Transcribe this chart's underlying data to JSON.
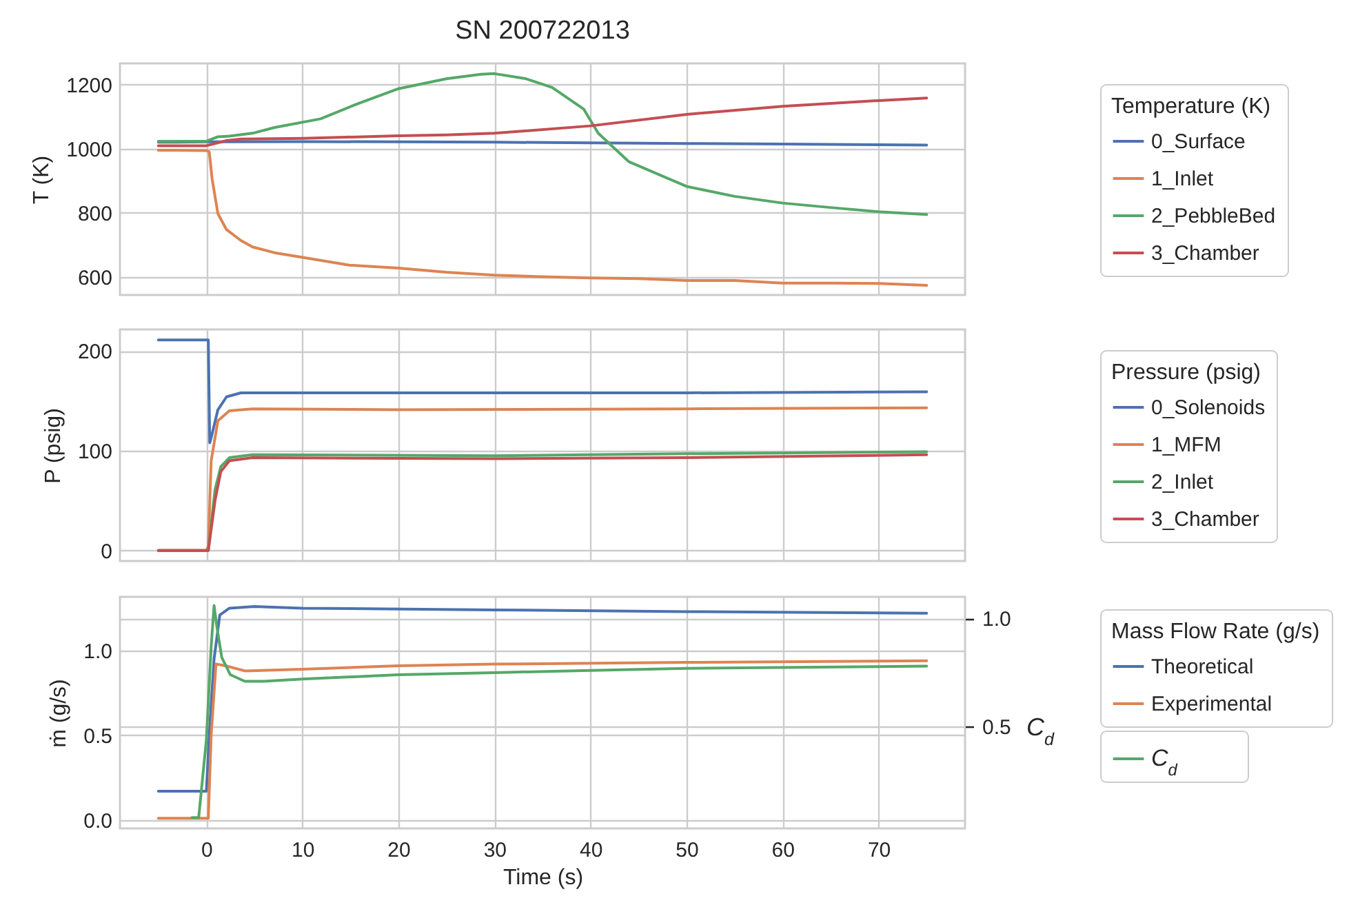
{
  "chart_data": [
    {
      "type": "line",
      "title": "SN 200722013",
      "ylabel": "T (K)",
      "legend_title": "Temperature (K)",
      "legend": "right",
      "grid": true,
      "tick_labels": "y",
      "xlim": [
        -9,
        79
      ],
      "xticks": [
        0,
        10,
        20,
        30,
        40,
        50,
        60,
        70
      ],
      "ylim": [
        543,
        1266
      ],
      "yticks": [
        600,
        800,
        1000,
        1200
      ],
      "series": [
        {
          "name": "0_Surface",
          "color": "#4c72b0",
          "x": [
            -5,
            0,
            10,
            20,
            30,
            40,
            50,
            60,
            70,
            75
          ],
          "values": [
            1020,
            1021,
            1022,
            1021,
            1020,
            1018,
            1016,
            1014,
            1012,
            1011
          ]
        },
        {
          "name": "1_Inlet",
          "color": "#dd8452",
          "x": [
            -5,
            0,
            0.3,
            0.6,
            1.2,
            2.1,
            3.6,
            4.8,
            7.1,
            10.7,
            14.9,
            20,
            25,
            30,
            35,
            40,
            45,
            50,
            55,
            60,
            65,
            70,
            75
          ],
          "values": [
            995,
            994,
            990,
            905,
            797,
            747,
            713,
            693,
            675,
            657,
            636,
            627,
            614,
            605,
            600,
            596,
            594,
            588,
            588,
            580,
            580,
            579,
            573
          ]
        },
        {
          "name": "2_PebbleBed",
          "color": "#55a868",
          "x": [
            -5,
            0,
            1.2,
            2.4,
            4.8,
            7.1,
            11.9,
            15.5,
            20,
            25,
            28.6,
            30,
            33.3,
            36,
            39.3,
            40.8,
            44,
            50,
            55,
            60,
            65,
            70,
            75
          ],
          "values": [
            1023,
            1023,
            1037,
            1039,
            1048,
            1066,
            1093,
            1137,
            1187,
            1218,
            1232,
            1234,
            1218,
            1191,
            1123,
            1048,
            959,
            882,
            851,
            830,
            816,
            803,
            794
          ]
        },
        {
          "name": "3_Chamber",
          "color": "#c44e52",
          "x": [
            -5,
            0,
            2.1,
            3.6,
            10,
            20,
            25,
            30,
            40,
            50,
            60,
            70,
            75
          ],
          "values": [
            1009,
            1009,
            1025,
            1030,
            1032,
            1040,
            1043,
            1048,
            1071,
            1107,
            1132,
            1150,
            1158
          ]
        }
      ]
    },
    {
      "type": "line",
      "ylabel": "P (psig)",
      "legend_title": "Pressure (psig)",
      "legend": "right",
      "grid": true,
      "tick_labels": "y",
      "xlim": [
        -9,
        79
      ],
      "xticks": [
        0,
        10,
        20,
        30,
        40,
        50,
        60,
        70
      ],
      "ylim": [
        -10.5,
        221.5
      ],
      "yticks": [
        0,
        100,
        200
      ],
      "series": [
        {
          "name": "0_Solenoids",
          "color": "#4c72b0",
          "x": [
            -5,
            0,
            0.2,
            0.35,
            0.5,
            1.2,
            2.1,
            3.6,
            10,
            30,
            50,
            75
          ],
          "values": [
            211,
            211,
            211,
            108,
            113,
            141,
            154,
            158,
            158,
            158,
            158,
            159
          ]
        },
        {
          "name": "1_MFM",
          "color": "#dd8452",
          "x": [
            -5,
            0,
            0.2,
            0.5,
            1.2,
            2.4,
            4.8,
            20,
            50,
            75
          ],
          "values": [
            0,
            0,
            4,
            90,
            130,
            140,
            142,
            141,
            142,
            143
          ]
        },
        {
          "name": "2_Inlet",
          "color": "#55a868",
          "x": [
            -5,
            0,
            0.2,
            0.9,
            1.5,
            2.4,
            4.8,
            30,
            50,
            75
          ],
          "values": [
            0,
            0,
            0,
            61,
            84,
            93,
            96,
            95,
            97,
            99
          ]
        },
        {
          "name": "3_Chamber",
          "color": "#c44e52",
          "x": [
            -5,
            0,
            0.2,
            0.9,
            1.5,
            2.4,
            4.8,
            30,
            50,
            75
          ],
          "values": [
            0,
            0,
            0,
            50,
            79,
            90,
            93,
            92,
            93,
            96
          ]
        }
      ]
    },
    {
      "type": "line",
      "xlabel": "Time (s)",
      "ylabel": "ṁ (g/s)",
      "y2label": "C$_{d}$",
      "legend_title": "Mass Flow Rate (g/s)",
      "legend": "right",
      "grid": true,
      "xlim": [
        -9,
        79
      ],
      "xticks": [
        0,
        10,
        20,
        30,
        40,
        50,
        60,
        70
      ],
      "ylim": [
        -0.05,
        1.317
      ],
      "yticks": [
        {
          "value": 0,
          "label": "0.0"
        },
        {
          "value": 0.5,
          "label": "0.5"
        },
        {
          "value": 1,
          "label": "1.0"
        }
      ],
      "y2lim": [
        0.03,
        1.1
      ],
      "y2ticks": [
        {
          "value": 0.5,
          "label": "0.5"
        },
        {
          "value": 1,
          "label": "1.0"
        }
      ],
      "series": [
        {
          "name": "Theoretical",
          "color": "#4c72b0",
          "x": [
            -5,
            0,
            0.3,
            0.8,
            1.4,
            2.4,
            5,
            10,
            30,
            50,
            75
          ],
          "values": [
            0.17,
            0.17,
            0.5,
            0.95,
            1.21,
            1.25,
            1.26,
            1.25,
            1.24,
            1.23,
            1.22
          ]
        },
        {
          "name": "Experimental",
          "color": "#dd8452",
          "x": [
            -5,
            0.2,
            0.5,
            1,
            2,
            4,
            10,
            20,
            30,
            50,
            75
          ],
          "values": [
            0.01,
            0.01,
            0.5,
            0.92,
            0.91,
            0.88,
            0.89,
            0.91,
            0.92,
            0.93,
            0.94
          ]
        },
        {
          "name": "C$_{d}$",
          "color": "#55a868",
          "axis": "y2",
          "x": [
            -1.5,
            -0.8,
            0,
            0.5,
            0.8,
            1.1,
            1.6,
            2.5,
            4,
            6,
            10,
            20,
            30,
            40,
            50,
            75
          ],
          "values": [
            0.08,
            0.08,
            0.44,
            0.87,
            1.06,
            0.96,
            0.82,
            0.74,
            0.71,
            0.71,
            0.72,
            0.74,
            0.75,
            0.76,
            0.77,
            0.78
          ]
        }
      ]
    }
  ]
}
